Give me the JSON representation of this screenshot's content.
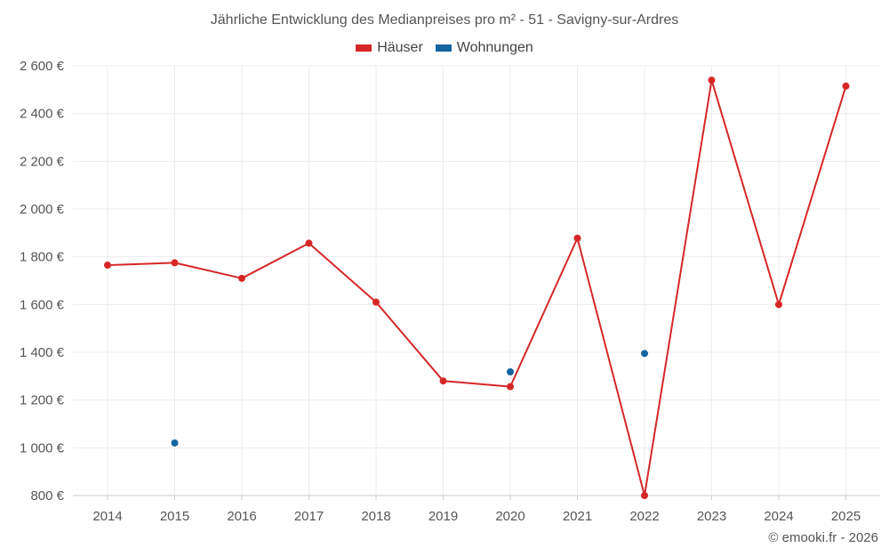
{
  "chart_data": {
    "type": "line",
    "title": "Jährliche Entwicklung des Medianpreises pro m² - 51 - Savigny-sur-Ardres",
    "xlabel": "",
    "ylabel": "",
    "categories": [
      "2014",
      "2015",
      "2016",
      "2017",
      "2018",
      "2019",
      "2020",
      "2021",
      "2022",
      "2023",
      "2024",
      "2025"
    ],
    "ylim": [
      800,
      2600
    ],
    "yticks": [
      800,
      1000,
      1200,
      1400,
      1600,
      1800,
      2000,
      2200,
      2400,
      2600
    ],
    "ytick_labels": [
      "800 €",
      "1 000 €",
      "1 200 €",
      "1 400 €",
      "1 600 €",
      "1 800 €",
      "2 000 €",
      "2 200 €",
      "2 400 €",
      "2 600 €"
    ],
    "grid": true,
    "legend_position": "top-center",
    "series": [
      {
        "name": "Häuser",
        "color": "#d62728",
        "style": "line-with-markers",
        "values": [
          1765,
          1775,
          1710,
          1857,
          1610,
          1280,
          1256,
          1878,
          800,
          2540,
          1600,
          2515
        ]
      },
      {
        "name": "Wohnungen",
        "color": "#1565a0",
        "style": "markers",
        "values": [
          null,
          1020,
          null,
          null,
          null,
          null,
          1318,
          null,
          1395,
          null,
          null,
          null
        ]
      }
    ]
  },
  "footer": {
    "credit": "© emooki.fr - 2026"
  }
}
